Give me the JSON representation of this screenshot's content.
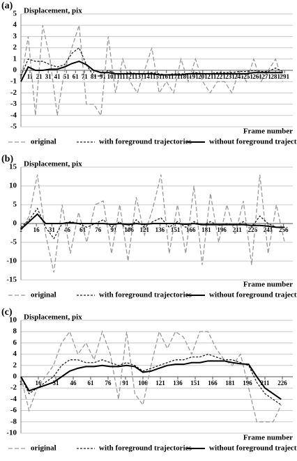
{
  "chart_data": [
    {
      "type": "line",
      "panel_label": "(a)",
      "y_label": "Displacement, pix",
      "x_label": "Frame number",
      "x": [
        1,
        9,
        17,
        25,
        33,
        41,
        49,
        57,
        65,
        73,
        81,
        89,
        97,
        105,
        113,
        121,
        129,
        137,
        145,
        153,
        161,
        169,
        177,
        185,
        193,
        201,
        209,
        217,
        225,
        233,
        241,
        249,
        257,
        265,
        273,
        281,
        289
      ],
      "xlim": [
        1,
        300
      ],
      "xticks": [
        1,
        11,
        21,
        31,
        41,
        51,
        61,
        71,
        81,
        91,
        101,
        111,
        121,
        131,
        141,
        151,
        161,
        171,
        181,
        191,
        201,
        211,
        221,
        231,
        241,
        251,
        261,
        271,
        281,
        291
      ],
      "ylim": [
        -5,
        5
      ],
      "yticks": [
        -5,
        -4,
        -3,
        -2,
        -1,
        0,
        1,
        2,
        3,
        4,
        5
      ],
      "grid": true,
      "series": [
        {
          "name": "original",
          "color": "#999999",
          "values": [
            -1,
            3,
            -4,
            4,
            1,
            -4,
            0,
            2,
            4,
            -3,
            -3,
            -4,
            3,
            -2,
            1,
            -1,
            -2,
            0,
            2,
            -2,
            -1,
            -2,
            1,
            -1,
            1,
            -1,
            -2,
            -1,
            -1,
            -2,
            0,
            -1,
            1,
            -1,
            0,
            1,
            -1
          ]
        },
        {
          "name": "with foreground trajectories",
          "color": "#222222",
          "values": [
            -0.5,
            1,
            0.8,
            0.8,
            0.5,
            0.3,
            0.5,
            1.5,
            2,
            0.5,
            -0.5,
            -0.5,
            0,
            -0.3,
            -0.3,
            -0.2,
            -0.3,
            -0.3,
            -0.2,
            -0.3,
            -0.4,
            -0.3,
            -0.3,
            -0.3,
            -0.2,
            -0.3,
            -0.3,
            -0.2,
            -0.2,
            -0.2,
            -0.1,
            -0.1,
            0,
            -0.1,
            -0.1,
            0.2,
            -0.1
          ]
        },
        {
          "name": "without foreground trajectories",
          "color": "#000000",
          "values": [
            -1,
            0.3,
            0,
            0,
            0.1,
            0.1,
            0.3,
            0.6,
            0.8,
            0.5,
            0,
            -0.2,
            -0.2,
            -0.3,
            -0.3,
            -0.3,
            -0.3,
            -0.3,
            -0.3,
            -0.4,
            -0.4,
            -0.4,
            -0.4,
            -0.3,
            -0.3,
            -0.3,
            -0.3,
            -0.3,
            -0.3,
            -0.3,
            -0.3,
            -0.3,
            -0.2,
            -0.2,
            -0.2,
            -0.2,
            -0.2
          ]
        }
      ]
    },
    {
      "type": "line",
      "panel_label": "(b)",
      "y_label": "Displacement, pix",
      "x_label": "Frame number",
      "x": [
        1,
        9,
        17,
        25,
        33,
        41,
        49,
        57,
        65,
        73,
        81,
        89,
        97,
        105,
        113,
        121,
        129,
        137,
        145,
        153,
        161,
        169,
        177,
        185,
        193,
        201,
        209,
        217,
        225,
        233,
        241,
        249,
        257
      ],
      "xlim": [
        1,
        265
      ],
      "xticks": [
        1,
        16,
        31,
        46,
        61,
        76,
        91,
        106,
        121,
        136,
        151,
        166,
        181,
        196,
        211,
        226,
        241,
        256
      ],
      "ylim": [
        -15,
        15
      ],
      "yticks": [
        -15,
        -10,
        -5,
        0,
        5,
        10,
        15
      ],
      "grid": true,
      "series": [
        {
          "name": "original",
          "color": "#999999",
          "values": [
            -2,
            2,
            13,
            -3,
            -13,
            5,
            -8,
            3,
            -5,
            5,
            6,
            -8,
            5,
            -10,
            7,
            -3,
            4,
            13,
            -8,
            5,
            -8,
            10,
            -11,
            8,
            -5,
            5,
            -3,
            6,
            -11,
            13,
            -8,
            5,
            -5
          ]
        },
        {
          "name": "with foreground trajectories",
          "color": "#222222",
          "values": [
            -1,
            1,
            4,
            -1,
            -4,
            0,
            0.5,
            0,
            -1,
            0,
            1,
            -1,
            0.5,
            -2,
            1,
            -1,
            0.5,
            1.5,
            -1,
            0.5,
            -1,
            0.5,
            -0.5,
            0.5,
            -0.5,
            0,
            -0.5,
            0.5,
            -1,
            2,
            0,
            -1,
            -1
          ]
        },
        {
          "name": "without foreground trajectories",
          "color": "#000000",
          "values": [
            -1.5,
            0.5,
            2.5,
            0,
            0,
            0,
            0.2,
            0,
            0,
            0,
            0,
            -0.2,
            0,
            -0.3,
            0,
            -0.2,
            0,
            0,
            0,
            0,
            -0.2,
            0,
            -0.3,
            -0.3,
            -0.3,
            -0.3,
            -0.3,
            -0.3,
            -0.5,
            -0.5,
            -0.7,
            -1,
            -1
          ]
        }
      ]
    },
    {
      "type": "line",
      "panel_label": "(c)",
      "y_label": "Displacement, pix",
      "x_label": "Frame number",
      "x": [
        1,
        8,
        15,
        22,
        29,
        36,
        43,
        50,
        57,
        64,
        71,
        78,
        85,
        92,
        99,
        106,
        113,
        120,
        127,
        134,
        141,
        148,
        155,
        162,
        169,
        176,
        183,
        190,
        197,
        204,
        211,
        218,
        225
      ],
      "xlim": [
        1,
        235
      ],
      "xticks": [
        1,
        16,
        31,
        46,
        61,
        76,
        91,
        106,
        121,
        136,
        151,
        166,
        181,
        196,
        211,
        226
      ],
      "ylim": [
        -10,
        10
      ],
      "yticks": [
        -10,
        -8,
        -6,
        -4,
        -2,
        0,
        2,
        4,
        6,
        8,
        10
      ],
      "grid": true,
      "series": [
        {
          "name": "original",
          "color": "#999999",
          "values": [
            0,
            -6,
            -2,
            0,
            2,
            6,
            8,
            4,
            6,
            3,
            8,
            4,
            -4,
            8,
            -3,
            -5,
            2,
            8,
            5,
            8,
            7,
            4,
            8,
            8,
            5,
            3,
            2,
            4,
            -2,
            -8,
            -8,
            -8,
            -5
          ]
        },
        {
          "name": "with foreground trajectories",
          "color": "#222222",
          "values": [
            0,
            -3,
            -2,
            -1,
            0,
            2,
            3,
            3,
            2.5,
            2.5,
            3,
            2.5,
            2,
            2.5,
            2,
            1,
            1.5,
            2,
            2.5,
            3,
            3,
            3.5,
            3.5,
            4,
            3.5,
            3,
            3,
            2.5,
            2,
            -1,
            -3,
            -4,
            -5
          ]
        },
        {
          "name": "without foreground trajectories",
          "color": "#000000",
          "values": [
            0,
            -2.5,
            -2,
            -1.5,
            -1,
            0,
            1,
            1.5,
            1.8,
            1.8,
            2,
            1.8,
            1.8,
            2,
            1.8,
            0.8,
            1,
            1.5,
            2,
            2.2,
            2.2,
            2.5,
            2.5,
            2.8,
            2.8,
            2.8,
            2.5,
            2.3,
            2.2,
            0,
            -2,
            -3,
            -4
          ]
        }
      ]
    }
  ]
}
